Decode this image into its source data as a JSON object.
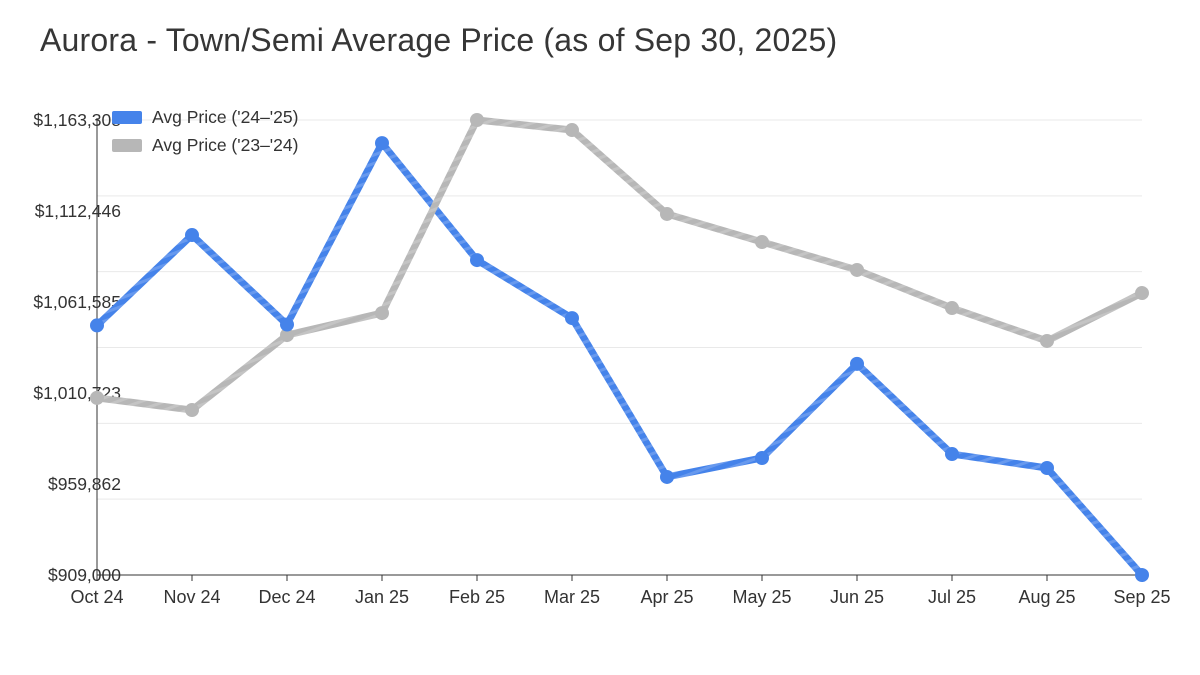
{
  "title": "Aurora - Town/Semi Average Price (as of Sep 30, 2025)",
  "chart_data": {
    "type": "line",
    "title": "Aurora - Town/Semi Average Price (as of Sep 30, 2025)",
    "categories": [
      "Oct 24",
      "Nov 24",
      "Dec 24",
      "Jan 25",
      "Feb 25",
      "Mar 25",
      "Apr 25",
      "May 25",
      "Jun 25",
      "Jul 25",
      "Aug 25",
      "Sep 25"
    ],
    "series": [
      {
        "name": "Avg Price ('24–'25)",
        "color": "#4583ea",
        "marker": "circle",
        "values": [
          1048500,
          1099000,
          1049000,
          1150400,
          1085000,
          1052600,
          963800,
          974400,
          1027000,
          976600,
          968800,
          909000
        ]
      },
      {
        "name": "Avg Price ('23–'24)",
        "color": "#b7b7b7",
        "marker": "circle",
        "values": [
          1008000,
          1001200,
          1043100,
          1055400,
          1163308,
          1157700,
          1110800,
          1095100,
          1079500,
          1058200,
          1039800,
          1066600
        ]
      }
    ],
    "xlabel": "",
    "ylabel": "",
    "ylim": [
      909000,
      1163308
    ],
    "y_tick_labels": [
      "$909,000",
      "$959,862",
      "$1,010,723",
      "$1,061,585",
      "$1,112,446",
      "$1,163,308"
    ],
    "y_tick_values": [
      909000,
      959862,
      1010723,
      1061585,
      1112446,
      1163308
    ],
    "grid": "horizontal",
    "gridline_count": 7,
    "legend_position": "top-left",
    "colors": {
      "background": "#ffffff",
      "gridline": "#e9e9e9",
      "axis": "#333333",
      "tick_text": "#333333",
      "title_text": "#363636"
    }
  }
}
